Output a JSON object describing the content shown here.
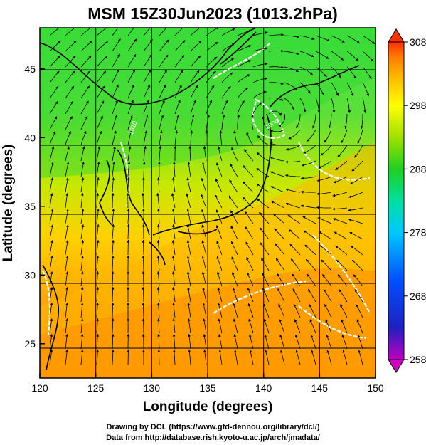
{
  "title": "MSM 15Z30Jun2023 (1013.2hPa)",
  "xlabel": "Longitude (degrees)",
  "ylabel": "Latitude  (degrees)",
  "x_ticks": [
    120,
    125,
    130,
    135,
    140,
    145,
    150
  ],
  "y_ticks": [
    25,
    30,
    35,
    40,
    45
  ],
  "extent": {
    "lon": [
      120,
      150
    ],
    "lat": [
      22.5,
      48
    ]
  },
  "colorbar": {
    "ticks": [
      308,
      298,
      288,
      278,
      268,
      258
    ],
    "range": [
      258,
      308
    ],
    "colors": [
      "#c000c0",
      "#2020c0",
      "#0050ff",
      "#00c8ff",
      "#00e0a0",
      "#20d020",
      "#a0e000",
      "#ffff00",
      "#ffc000",
      "#ff8000",
      "#ff3000"
    ]
  },
  "contour_labels": [
    "1004",
    "1010"
  ],
  "credits": {
    "line1": "Drawing by DCL (https://www.gfd-dennou.org/library/dcl/)",
    "line2": "Data from http://database.rish.kyoto-u.ac.jp/arch/jmadata/"
  }
}
